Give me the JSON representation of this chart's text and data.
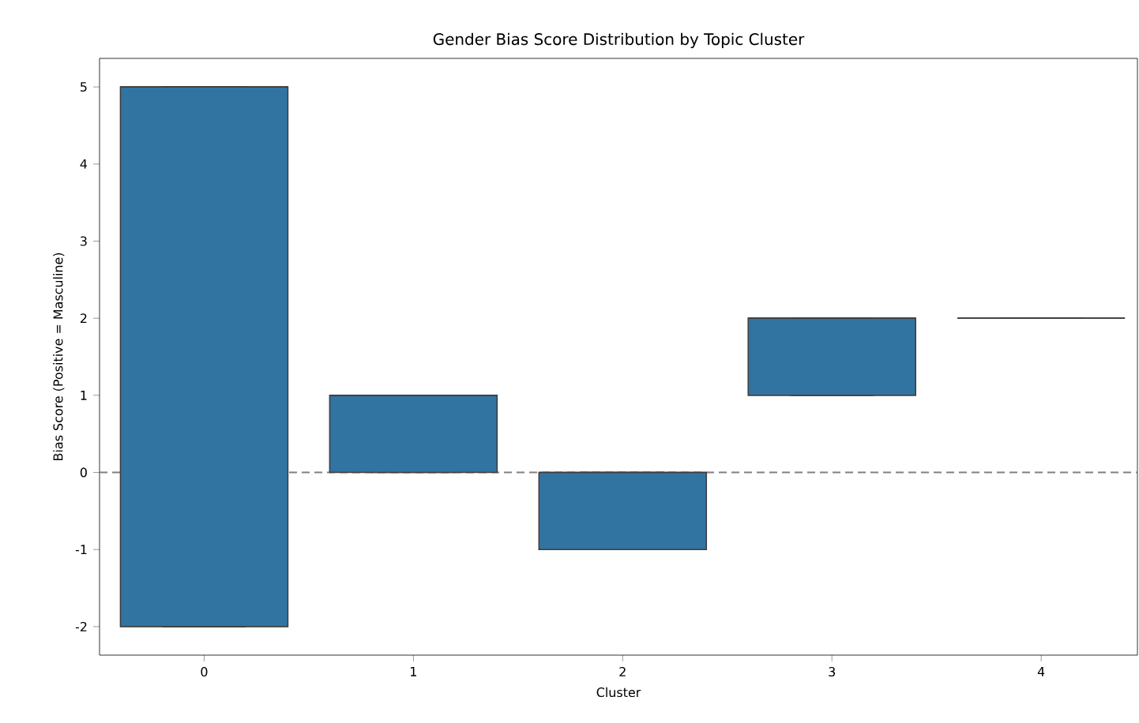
{
  "chart_data": {
    "type": "box",
    "title": "Gender Bias Score Distribution by Topic Cluster",
    "xlabel": "Cluster",
    "ylabel": "Bias Score (Positive = Masculine)",
    "categories": [
      "0",
      "1",
      "2",
      "3",
      "4"
    ],
    "boxes": [
      {
        "low": -2,
        "q1": -2,
        "median": 5,
        "q3": 5,
        "high": 5
      },
      {
        "low": 0,
        "q1": 0,
        "median": 1,
        "q3": 1,
        "high": 1
      },
      {
        "low": -1,
        "q1": -1,
        "median": 0,
        "q3": 0,
        "high": 0
      },
      {
        "low": 1,
        "q1": 1,
        "median": 2,
        "q3": 2,
        "high": 2
      },
      {
        "low": 2,
        "q1": 2,
        "median": 2,
        "q3": 2,
        "high": 2
      }
    ],
    "colors": [
      "#3274a1",
      "#3274a1",
      "#3274a1",
      "#3274a1",
      "#3f3f3f"
    ],
    "ylim": [
      -2.37,
      5.37
    ],
    "yticks": [
      -2,
      -1,
      0,
      1,
      2,
      3,
      4,
      5
    ],
    "ref_lines": [
      {
        "axis": "y",
        "value": 0,
        "color": "#808080",
        "line_style": "dashed"
      }
    ],
    "grid": false
  }
}
